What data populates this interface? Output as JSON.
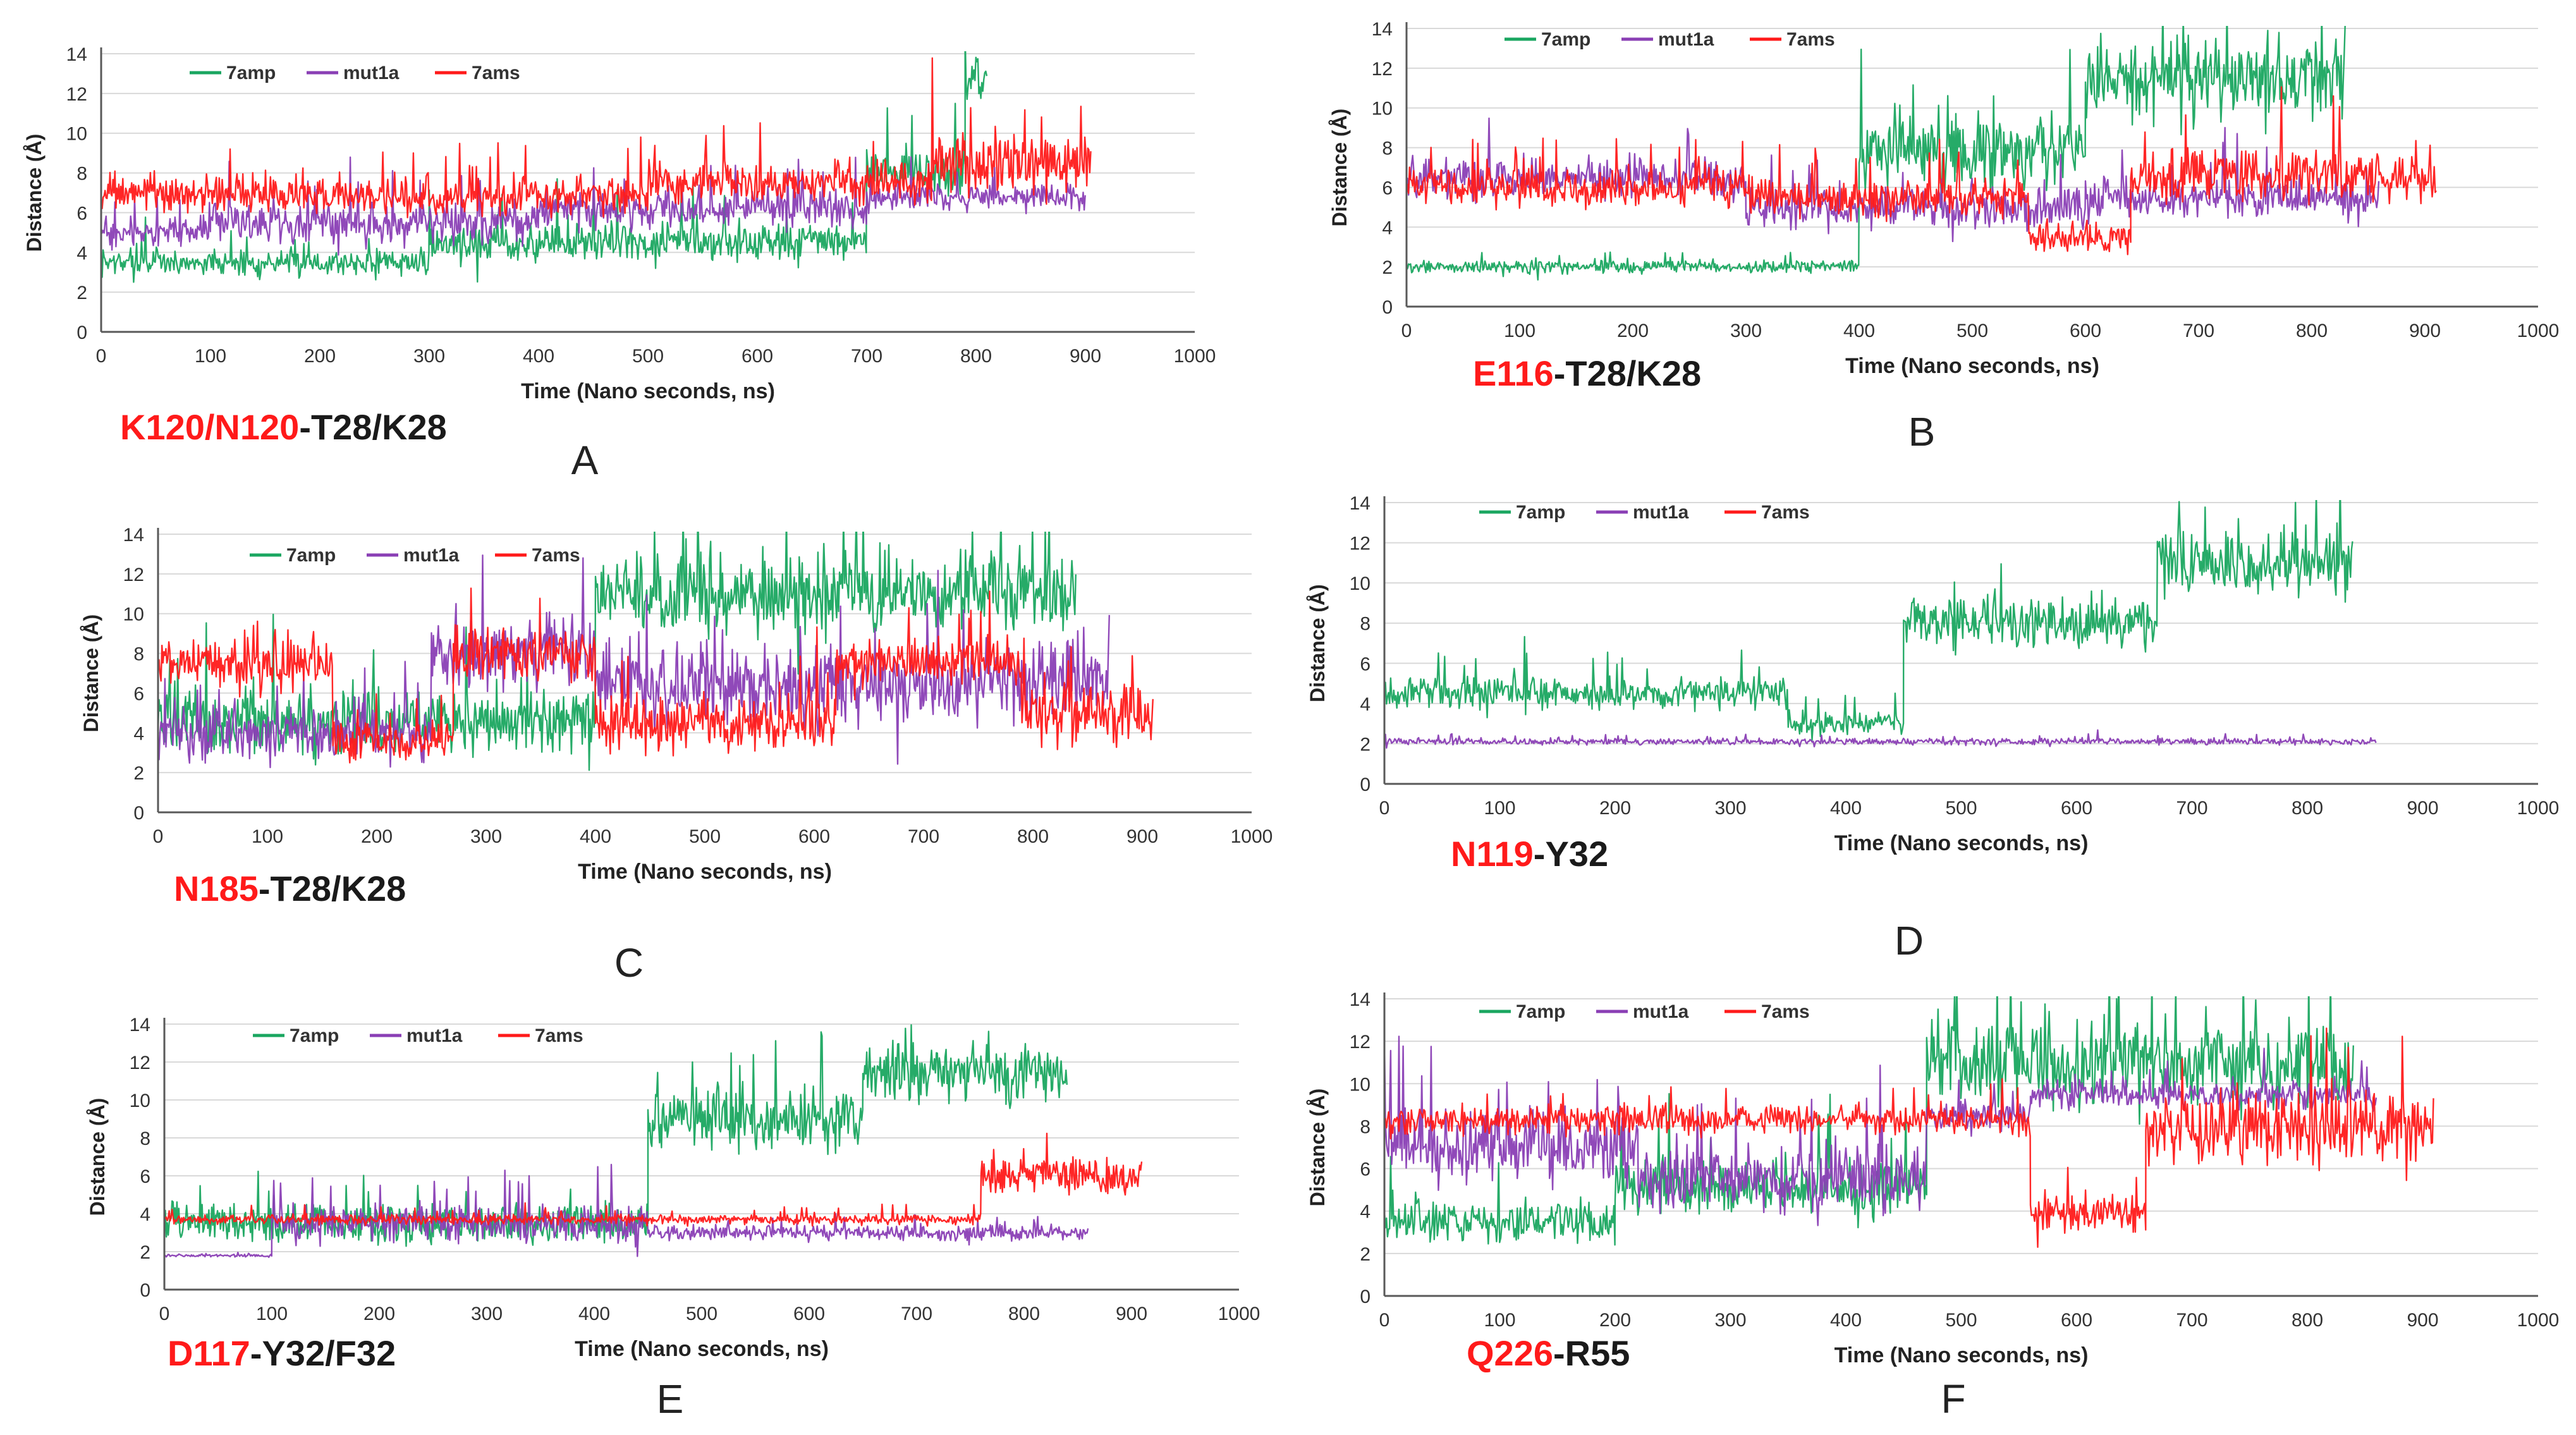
{
  "colors": {
    "7amp": "#1aa660",
    "mut1a": "#8a3fb5",
    "7ams": "#ff1a1a",
    "axis": "#595959",
    "grid": "#d9d9d9",
    "residue_red": "#ff1a1a",
    "residue_black": "#1a1a1a"
  },
  "chart_data": [
    {
      "panel_letter": "A",
      "type": "line",
      "xlabel": "Time  (Nano seconds, ns)",
      "ylabel": "Distance (Å)",
      "xlim": [
        0,
        1000
      ],
      "ylim": [
        0,
        14
      ],
      "xticks": [
        0,
        100,
        200,
        300,
        400,
        500,
        600,
        700,
        800,
        900,
        1000
      ],
      "yticks": [
        0,
        2,
        4,
        6,
        8,
        10,
        12,
        14
      ],
      "grid": "horizontal",
      "legend": [
        "7amp",
        "mut1a",
        "7ams"
      ],
      "title_red": "K120/N120",
      "title_black": "-T28/K28",
      "series": [
        {
          "name": "7amp",
          "segments": [
            [
              0,
              300,
              3.5,
              1.0
            ],
            [
              300,
              700,
              4.5,
              1.5
            ],
            [
              700,
              790,
              8.0,
              2.0
            ],
            [
              790,
              810,
              12.5,
              2.0
            ]
          ]
        },
        {
          "name": "mut1a",
          "segments": [
            [
              0,
              100,
              5.0,
              1.2
            ],
            [
              100,
              400,
              5.5,
              1.5
            ],
            [
              400,
              700,
              6.2,
              1.5
            ],
            [
              700,
              900,
              6.8,
              1.0
            ]
          ]
        },
        {
          "name": "7ams",
          "segments": [
            [
              0,
              200,
              7.0,
              1.5
            ],
            [
              200,
              500,
              6.8,
              1.5
            ],
            [
              500,
              760,
              7.5,
              1.5
            ],
            [
              760,
              905,
              8.5,
              2.5
            ]
          ]
        }
      ]
    },
    {
      "panel_letter": "B",
      "type": "line",
      "xlabel": "Time  (Nano seconds, ns)",
      "ylabel": "Distance (Å)",
      "xlim": [
        0,
        1000
      ],
      "ylim": [
        0,
        14
      ],
      "xticks": [
        0,
        100,
        200,
        300,
        400,
        500,
        600,
        700,
        800,
        900,
        1000
      ],
      "yticks": [
        0,
        2,
        4,
        6,
        8,
        10,
        12,
        14
      ],
      "grid": "horizontal",
      "legend": [
        "7amp",
        "mut1a",
        "7ams"
      ],
      "title_red": "E116",
      "title_black": "-T28/K28",
      "series": [
        {
          "name": "7amp",
          "segments": [
            [
              0,
              400,
              2.0,
              0.5
            ],
            [
              400,
              600,
              8.0,
              3.0
            ],
            [
              600,
              830,
              11.5,
              3.0
            ]
          ]
        },
        {
          "name": "mut1a",
          "segments": [
            [
              0,
              300,
              6.5,
              1.5
            ],
            [
              300,
              600,
              5.0,
              1.5
            ],
            [
              600,
              860,
              5.5,
              1.5
            ]
          ]
        },
        {
          "name": "7ams",
          "segments": [
            [
              0,
              300,
              6.0,
              1.5
            ],
            [
              300,
              550,
              5.5,
              1.5
            ],
            [
              550,
              640,
              3.5,
              1.5
            ],
            [
              640,
              910,
              6.5,
              2.0
            ]
          ]
        }
      ]
    },
    {
      "panel_letter": "C",
      "type": "line",
      "xlabel": "Time  (Nano seconds, ns)",
      "ylabel": "Distance (Å)",
      "xlim": [
        0,
        1000
      ],
      "ylim": [
        0,
        14
      ],
      "xticks": [
        0,
        100,
        200,
        300,
        400,
        500,
        600,
        700,
        800,
        900,
        1000
      ],
      "yticks": [
        0,
        2,
        4,
        6,
        8,
        10,
        12,
        14
      ],
      "grid": "horizontal",
      "legend": [
        "7amp",
        "mut1a",
        "7ams"
      ],
      "title_red": "N185",
      "title_black": "-T28/K28",
      "series": [
        {
          "name": "7amp",
          "segments": [
            [
              0,
              400,
              4.5,
              2.5
            ],
            [
              400,
              840,
              11.0,
              3.0
            ]
          ]
        },
        {
          "name": "mut1a",
          "segments": [
            [
              0,
              250,
              4.0,
              2.0
            ],
            [
              250,
              400,
              8.0,
              2.5
            ],
            [
              400,
              870,
              6.5,
              3.0
            ]
          ]
        },
        {
          "name": "7ams",
          "segments": [
            [
              0,
              160,
              7.5,
              2.0
            ],
            [
              160,
              270,
              3.5,
              1.5
            ],
            [
              270,
              400,
              8.0,
              2.0
            ],
            [
              400,
              620,
              4.5,
              2.0
            ],
            [
              620,
              790,
              7.5,
              2.0
            ],
            [
              790,
              910,
              5.0,
              2.5
            ]
          ]
        }
      ]
    },
    {
      "panel_letter": "D",
      "type": "line",
      "xlabel": "Time  (Nano seconds, ns)",
      "ylabel": "Distance (Å)",
      "xlim": [
        0,
        1000
      ],
      "ylim": [
        0,
        14
      ],
      "xticks": [
        0,
        100,
        200,
        300,
        400,
        500,
        600,
        700,
        800,
        900,
        1000
      ],
      "yticks": [
        0,
        2,
        4,
        6,
        8,
        10,
        12,
        14
      ],
      "grid": "horizontal",
      "legend": [
        "7amp",
        "mut1a",
        "7ams"
      ],
      "title_red": "N119",
      "title_black": "-Y32",
      "series": [
        {
          "name": "7amp",
          "segments": [
            [
              0,
              350,
              4.5,
              1.2
            ],
            [
              350,
              450,
              3.0,
              0.8
            ],
            [
              450,
              670,
              8.0,
              2.0
            ],
            [
              670,
              840,
              11.0,
              2.5
            ]
          ]
        },
        {
          "name": "mut1a",
          "segments": [
            [
              0,
              860,
              2.1,
              0.25
            ]
          ]
        },
        {
          "name": "7ams",
          "segments": []
        }
      ]
    },
    {
      "panel_letter": "E",
      "type": "line",
      "xlabel": "Time  (Nano seconds, ns)",
      "ylabel": "Distance (Å)",
      "xlim": [
        0,
        1000
      ],
      "ylim": [
        0,
        14
      ],
      "xticks": [
        0,
        100,
        200,
        300,
        400,
        500,
        600,
        700,
        800,
        900,
        1000
      ],
      "yticks": [
        0,
        2,
        4,
        6,
        8,
        10,
        12,
        14
      ],
      "grid": "horizontal",
      "legend": [
        "7amp",
        "mut1a",
        "7ams"
      ],
      "title_red": "D117",
      "title_black": "-Y32/F32",
      "series": [
        {
          "name": "7amp",
          "segments": [
            [
              0,
              450,
              3.5,
              1.5
            ],
            [
              450,
              650,
              9.0,
              2.5
            ],
            [
              650,
              840,
              11.5,
              2.5
            ]
          ]
        },
        {
          "name": "mut1a",
          "segments": [
            [
              0,
              100,
              1.8,
              0.1
            ],
            [
              100,
              450,
              3.5,
              1.5
            ],
            [
              450,
              860,
              3.0,
              0.6
            ]
          ]
        },
        {
          "name": "7ams",
          "segments": [
            [
              0,
              760,
              3.7,
              0.4
            ],
            [
              760,
              910,
              6.0,
              1.5
            ]
          ]
        }
      ]
    },
    {
      "panel_letter": "F",
      "type": "line",
      "xlabel": "Time  (Nano seconds, ns)",
      "ylabel": "Distance (Å)",
      "xlim": [
        0,
        1000
      ],
      "ylim": [
        0,
        14
      ],
      "xticks": [
        0,
        100,
        200,
        300,
        400,
        500,
        600,
        700,
        800,
        900,
        1000
      ],
      "yticks": [
        0,
        2,
        4,
        6,
        8,
        10,
        12,
        14
      ],
      "grid": "horizontal",
      "legend": [
        "7amp",
        "mut1a",
        "7ams"
      ],
      "title_red": "Q226",
      "title_black": "-R55",
      "series": [
        {
          "name": "7amp",
          "segments": [
            [
              0,
              200,
              3.5,
              1.5
            ],
            [
              200,
              470,
              5.0,
              2.0
            ],
            [
              470,
              840,
              11.0,
              3.0
            ]
          ]
        },
        {
          "name": "mut1a",
          "segments": [
            [
              0,
              220,
              7.0,
              2.5
            ],
            [
              220,
              470,
              5.5,
              2.5
            ],
            [
              470,
              560,
              8.5,
              1.0
            ],
            [
              560,
              860,
              9.5,
              1.0
            ]
          ]
        },
        {
          "name": "7ams",
          "segments": [
            [
              0,
              560,
              8.3,
              1.0
            ],
            [
              560,
              660,
              4.0,
              1.5
            ],
            [
              660,
              910,
              8.0,
              2.5
            ]
          ]
        }
      ]
    }
  ]
}
